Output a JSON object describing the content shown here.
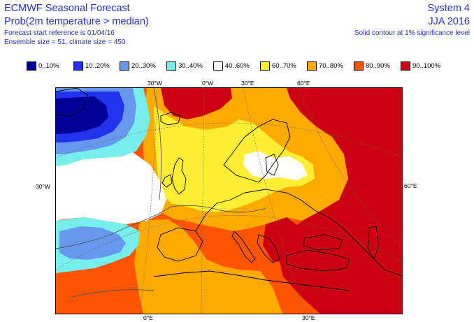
{
  "header": {
    "title": "ECMWF Seasonal Forecast",
    "subtitle": "Prob(2m temperature > median)",
    "forecast_start": "Forecast start reference is 01/04/16",
    "ensemble": "Ensemble size = 51, climate size = 450",
    "system": "System 4",
    "season": "JJA 2016",
    "significance_note": "Solid contour at 1% significance level"
  },
  "legend": {
    "items": [
      {
        "label": "0..10%",
        "color": "#000099"
      },
      {
        "label": "10..20%",
        "color": "#2233ee"
      },
      {
        "label": "20..30%",
        "color": "#6699ee"
      },
      {
        "label": "30..40%",
        "color": "#77eeee"
      },
      {
        "label": "40..60%",
        "color": "#ffffff"
      },
      {
        "label": "60..70%",
        "color": "#ffee33"
      },
      {
        "label": "70..80%",
        "color": "#ffaa00"
      },
      {
        "label": "80..90%",
        "color": "#ff5500"
      },
      {
        "label": "90..100%",
        "color": "#cc0011"
      }
    ]
  },
  "map": {
    "top_labels": [
      "30°W",
      "0°W",
      "30°E",
      "60°E"
    ],
    "bottom_labels": [
      "0°E",
      "30°E"
    ],
    "left_label": "30°W",
    "right_label": "60°E"
  }
}
